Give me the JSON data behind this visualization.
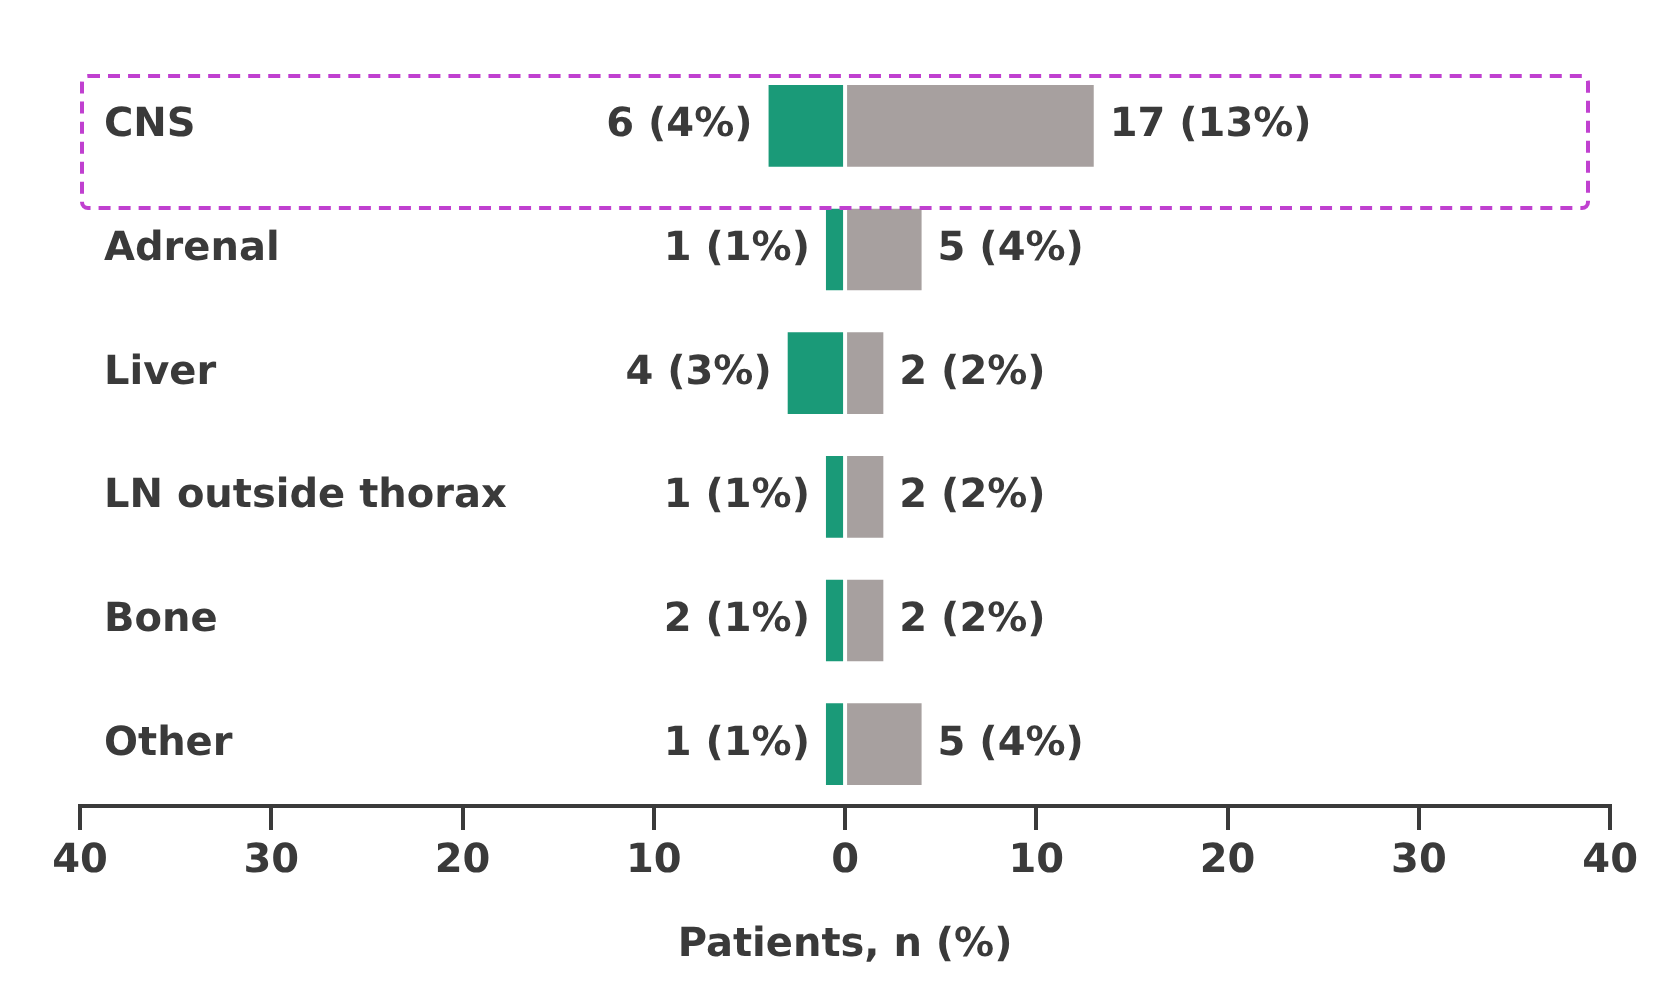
{
  "chart_data": {
    "type": "bar",
    "orientation": "horizontal",
    "xlabel": "Patients, n (%)",
    "categories": [
      "CNS",
      "Adrenal",
      "Liver",
      "LN outside thorax",
      "Bone",
      "Other"
    ],
    "series": [
      {
        "color": "#1a9a78",
        "base": [
          -4,
          -1,
          -3,
          -1,
          -1,
          -1
        ],
        "values": [
          4,
          1,
          3,
          1,
          1,
          1
        ],
        "value_labels": [
          "6 (4%)",
          "1 (1%)",
          "4 (3%)",
          "1 (1%)",
          "2 (1%)",
          "1 (1%)"
        ]
      },
      {
        "color": "#a7a09f",
        "values": [
          13,
          4,
          2,
          2,
          2,
          4
        ],
        "value_labels": [
          "17 (13%)",
          "5 (4%)",
          "2 (2%)",
          "2 (2%)",
          "2 (2%)",
          "5 (4%)"
        ]
      }
    ],
    "xlim": [
      -40,
      40
    ],
    "xticks": [
      {
        "value": -40,
        "label": "40"
      },
      {
        "value": -30,
        "label": "30"
      },
      {
        "value": -20,
        "label": "20"
      },
      {
        "value": -10,
        "label": "10"
      },
      0,
      10,
      20,
      30,
      40
    ],
    "grid": false,
    "legend": false
  }
}
